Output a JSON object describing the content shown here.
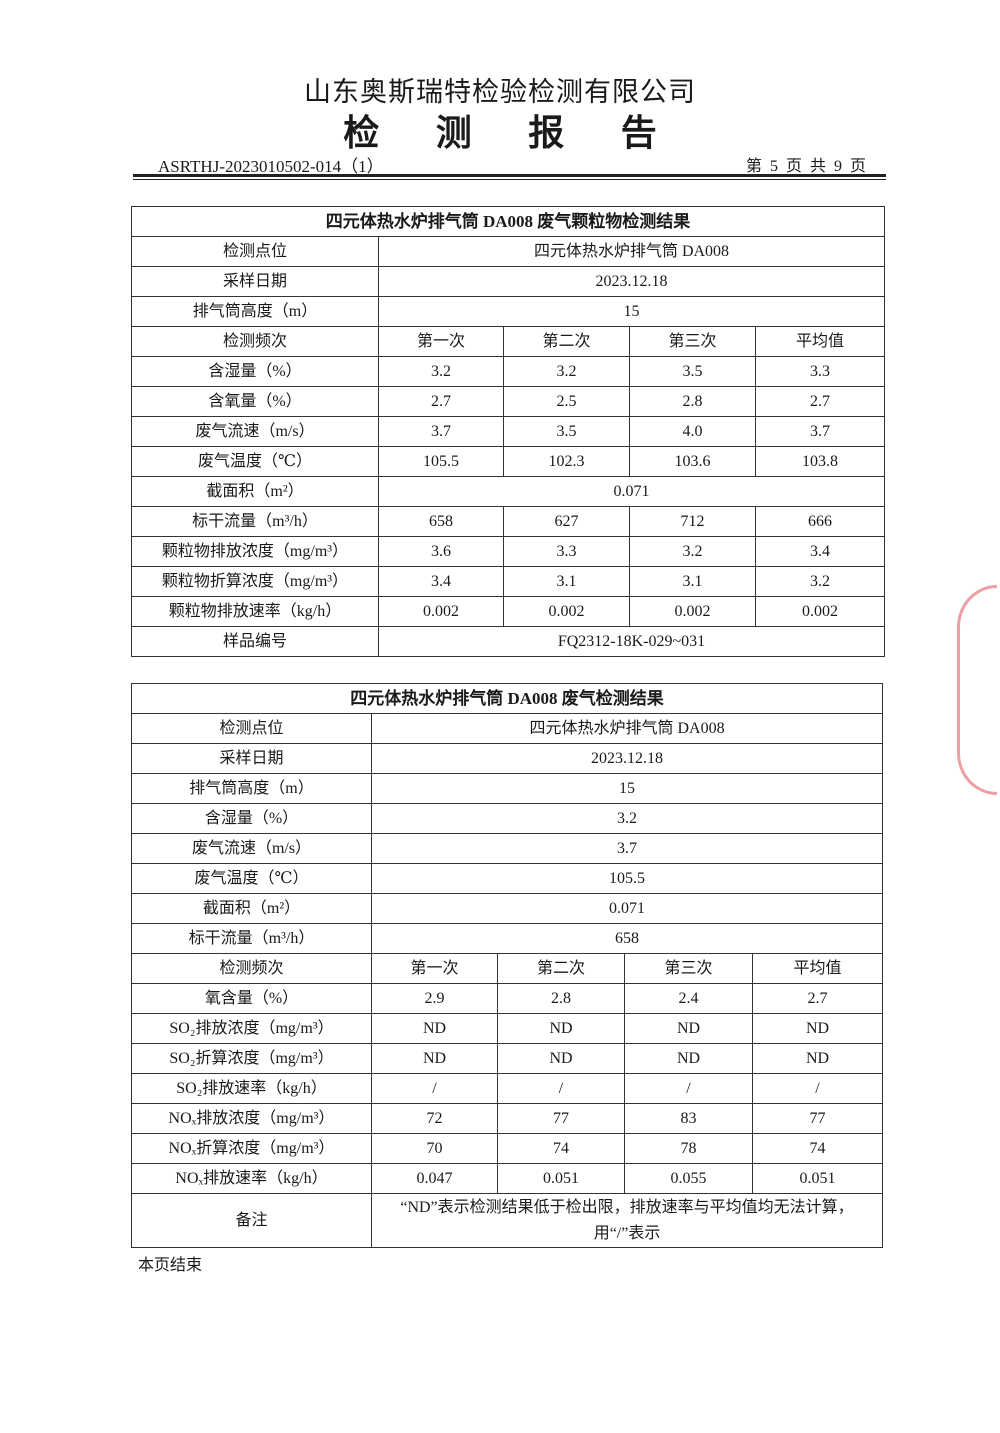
{
  "header": {
    "company": "山东奥斯瑞特检验检测有限公司",
    "report_title": "检 测 报 告",
    "document_number": "ASRTHJ-2023010502-014（1）",
    "page_info": "第 5 页 共 9 页"
  },
  "table1": {
    "title": "四元体热水炉排气筒 DA008 废气颗粒物检测结果",
    "rows": [
      {
        "label": "检测点位",
        "merged": "四元体热水炉排气筒 DA008"
      },
      {
        "label": "采样日期",
        "merged": "2023.12.18"
      },
      {
        "label": "排气筒高度（m）",
        "merged": "15"
      },
      {
        "label": "检测频次",
        "values": [
          "第一次",
          "第二次",
          "第三次",
          "平均值"
        ]
      },
      {
        "label": "含湿量（%）",
        "values": [
          "3.2",
          "3.2",
          "3.5",
          "3.3"
        ]
      },
      {
        "label": "含氧量（%）",
        "values": [
          "2.7",
          "2.5",
          "2.8",
          "2.7"
        ]
      },
      {
        "label": "废气流速（m/s）",
        "values": [
          "3.7",
          "3.5",
          "4.0",
          "3.7"
        ]
      },
      {
        "label": "废气温度（℃）",
        "values": [
          "105.5",
          "102.3",
          "103.6",
          "103.8"
        ]
      },
      {
        "label": "截面积（m²）",
        "merged": "0.071"
      },
      {
        "label": "标干流量（m³/h）",
        "values": [
          "658",
          "627",
          "712",
          "666"
        ]
      },
      {
        "label": "颗粒物排放浓度（mg/m³）",
        "values": [
          "3.6",
          "3.3",
          "3.2",
          "3.4"
        ]
      },
      {
        "label": "颗粒物折算浓度（mg/m³）",
        "values": [
          "3.4",
          "3.1",
          "3.1",
          "3.2"
        ]
      },
      {
        "label": "颗粒物排放速率（kg/h）",
        "values": [
          "0.002",
          "0.002",
          "0.002",
          "0.002"
        ]
      },
      {
        "label": "样品编号",
        "merged": "FQ2312-18K-029~031"
      }
    ]
  },
  "table2": {
    "title": "四元体热水炉排气筒 DA008 废气检测结果",
    "rows": [
      {
        "label": "检测点位",
        "merged": "四元体热水炉排气筒 DA008"
      },
      {
        "label": "采样日期",
        "merged": "2023.12.18"
      },
      {
        "label": "排气筒高度（m）",
        "merged": "15"
      },
      {
        "label": "含湿量（%）",
        "merged": "3.2"
      },
      {
        "label": "废气流速（m/s）",
        "merged": "3.7"
      },
      {
        "label": "废气温度（℃）",
        "merged": "105.5"
      },
      {
        "label": "截面积（m²）",
        "merged": "0.071"
      },
      {
        "label": "标干流量（m³/h）",
        "merged": "658"
      },
      {
        "label": "检测频次",
        "values": [
          "第一次",
          "第二次",
          "第三次",
          "平均值"
        ]
      },
      {
        "label": "氧含量（%）",
        "values": [
          "2.9",
          "2.8",
          "2.4",
          "2.7"
        ]
      },
      {
        "label": "SO₂排放浓度（mg/m³）",
        "values": [
          "ND",
          "ND",
          "ND",
          "ND"
        ]
      },
      {
        "label": "SO₂折算浓度（mg/m³）",
        "values": [
          "ND",
          "ND",
          "ND",
          "ND"
        ]
      },
      {
        "label": "SO₂排放速率（kg/h）",
        "values": [
          "/",
          "/",
          "/",
          "/"
        ]
      },
      {
        "label": "NOₓ排放浓度（mg/m³）",
        "values": [
          "72",
          "77",
          "83",
          "77"
        ]
      },
      {
        "label": "NOₓ折算浓度（mg/m³）",
        "values": [
          "70",
          "74",
          "78",
          "74"
        ]
      },
      {
        "label": "NOₓ排放速率（kg/h）",
        "values": [
          "0.047",
          "0.051",
          "0.055",
          "0.051"
        ]
      },
      {
        "label": "备注",
        "note": "“ND”表示检测结果低于检出限，排放速率与平均值均无法计算，用“/”表示"
      }
    ]
  },
  "footer": {
    "end_note": "本页结束"
  },
  "colors": {
    "text": "#1a1a1a",
    "border": "#333333",
    "seal": "#dc505a"
  }
}
